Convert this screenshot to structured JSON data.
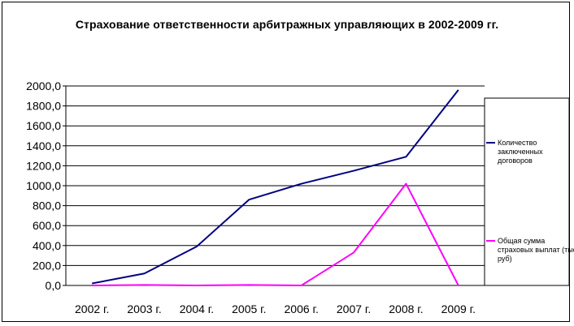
{
  "chart_data": {
    "type": "line",
    "title": "Страхование ответственности арбитражных управляющих в 2002-2009 гг.",
    "categories": [
      "2002 г.",
      "2003 г.",
      "2004 г.",
      "2005 г.",
      "2006 г.",
      "2007 г.",
      "2008 г.",
      "2009 г."
    ],
    "yticks": [
      "0,0",
      "200,0",
      "400,0",
      "600,0",
      "800,0",
      "1000,0",
      "1200,0",
      "1400,0",
      "1600,0",
      "1800,0",
      "2000,0"
    ],
    "ylim": [
      0,
      2000
    ],
    "grid": true,
    "legend_position": "right",
    "series": [
      {
        "name_lines": [
          "Количество",
          "заключенных",
          "договоров"
        ],
        "color": "#000080",
        "values": [
          20,
          120,
          390,
          860,
          1020,
          1150,
          1290,
          1960
        ]
      },
      {
        "name_lines": [
          "Общая сумма",
          "страховых выплат (тыс.",
          "руб)"
        ],
        "color": "#ff00ff",
        "values": [
          0,
          5,
          0,
          5,
          0,
          330,
          1020,
          0
        ]
      }
    ]
  }
}
